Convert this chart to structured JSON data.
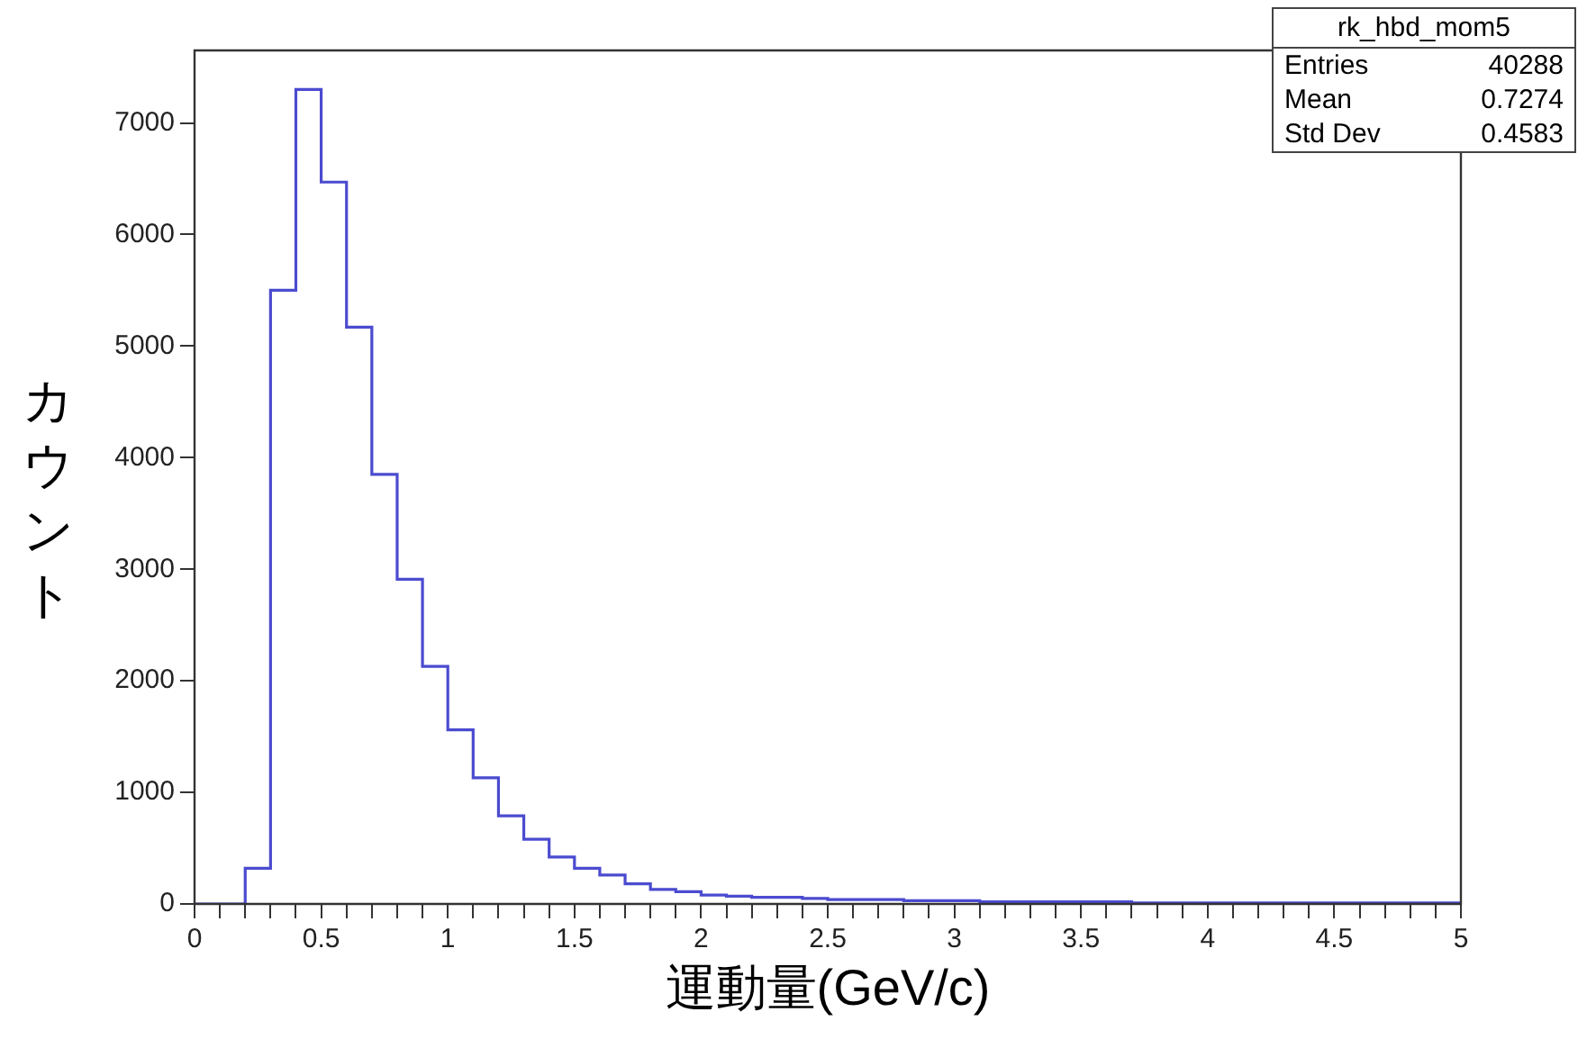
{
  "chart_data": {
    "type": "histogram",
    "xlabel": "運動量(GeV/c)",
    "ylabel": "カウント",
    "bins": [
      0,
      0.1,
      0.2,
      0.3,
      0.4,
      0.5,
      0.6,
      0.7,
      0.8,
      0.9,
      1,
      1.1,
      1.2,
      1.3,
      1.4,
      1.5,
      1.6,
      1.7,
      1.8,
      1.9,
      2,
      2.1,
      2.2,
      2.3,
      2.4,
      2.5,
      2.6,
      2.7,
      2.8,
      2.9,
      3,
      3.1,
      3.2,
      3.3,
      3.4,
      3.5,
      3.6,
      3.7,
      3.8,
      3.9,
      4,
      4.1,
      4.2,
      4.3,
      4.4,
      4.5,
      4.6,
      4.7,
      4.8,
      4.9,
      5
    ],
    "values": [
      0,
      0,
      320,
      5500,
      7300,
      6470,
      5170,
      3850,
      2910,
      2130,
      1560,
      1130,
      790,
      580,
      420,
      320,
      260,
      180,
      130,
      110,
      80,
      70,
      60,
      60,
      50,
      40,
      40,
      40,
      30,
      30,
      30,
      20,
      20,
      20,
      20,
      20,
      20,
      10,
      10,
      10,
      10,
      10,
      10,
      10,
      10,
      10,
      10,
      10,
      10,
      10
    ],
    "color": "#4b4bd0",
    "xlim": [
      0,
      5
    ],
    "xticks": [
      0,
      {
        "value": 0.1,
        "label": null
      },
      {
        "value": 0.2,
        "label": null
      },
      {
        "value": 0.3,
        "label": null
      },
      {
        "value": 0.4,
        "label": null
      },
      0.5,
      {
        "value": 0.6,
        "label": null
      },
      {
        "value": 0.7,
        "label": null
      },
      {
        "value": 0.8,
        "label": null
      },
      {
        "value": 0.9,
        "label": null
      },
      1,
      {
        "value": 1.1,
        "label": null
      },
      {
        "value": 1.2,
        "label": null
      },
      {
        "value": 1.3,
        "label": null
      },
      {
        "value": 1.4,
        "label": null
      },
      1.5,
      {
        "value": 1.6,
        "label": null
      },
      {
        "value": 1.7,
        "label": null
      },
      {
        "value": 1.8,
        "label": null
      },
      {
        "value": 1.9,
        "label": null
      },
      2,
      {
        "value": 2.1,
        "label": null
      },
      {
        "value": 2.2,
        "label": null
      },
      {
        "value": 2.3,
        "label": null
      },
      {
        "value": 2.4,
        "label": null
      },
      2.5,
      {
        "value": 2.6,
        "label": null
      },
      {
        "value": 2.7,
        "label": null
      },
      {
        "value": 2.8,
        "label": null
      },
      {
        "value": 2.9,
        "label": null
      },
      3,
      {
        "value": 3.1,
        "label": null
      },
      {
        "value": 3.2,
        "label": null
      },
      {
        "value": 3.3,
        "label": null
      },
      {
        "value": 3.4,
        "label": null
      },
      3.5,
      {
        "value": 3.6,
        "label": null
      },
      {
        "value": 3.7,
        "label": null
      },
      {
        "value": 3.8,
        "label": null
      },
      {
        "value": 3.9,
        "label": null
      },
      4,
      {
        "value": 4.1,
        "label": null
      },
      {
        "value": 4.2,
        "label": null
      },
      {
        "value": 4.3,
        "label": null
      },
      {
        "value": 4.4,
        "label": null
      },
      4.5,
      {
        "value": 4.6,
        "label": null
      },
      {
        "value": 4.7,
        "label": null
      },
      {
        "value": 4.8,
        "label": null
      },
      {
        "value": 4.9,
        "label": null
      },
      5
    ],
    "ylim": [
      0,
      7650
    ],
    "yticks": [
      0,
      1000,
      2000,
      3000,
      4000,
      5000,
      6000,
      7000
    ],
    "grid": false,
    "legend": false,
    "annotations": [
      "rk_hbd_mom5",
      "Entries",
      "40288",
      "Mean",
      "0.7274",
      "Std Dev",
      "0.4583"
    ]
  }
}
